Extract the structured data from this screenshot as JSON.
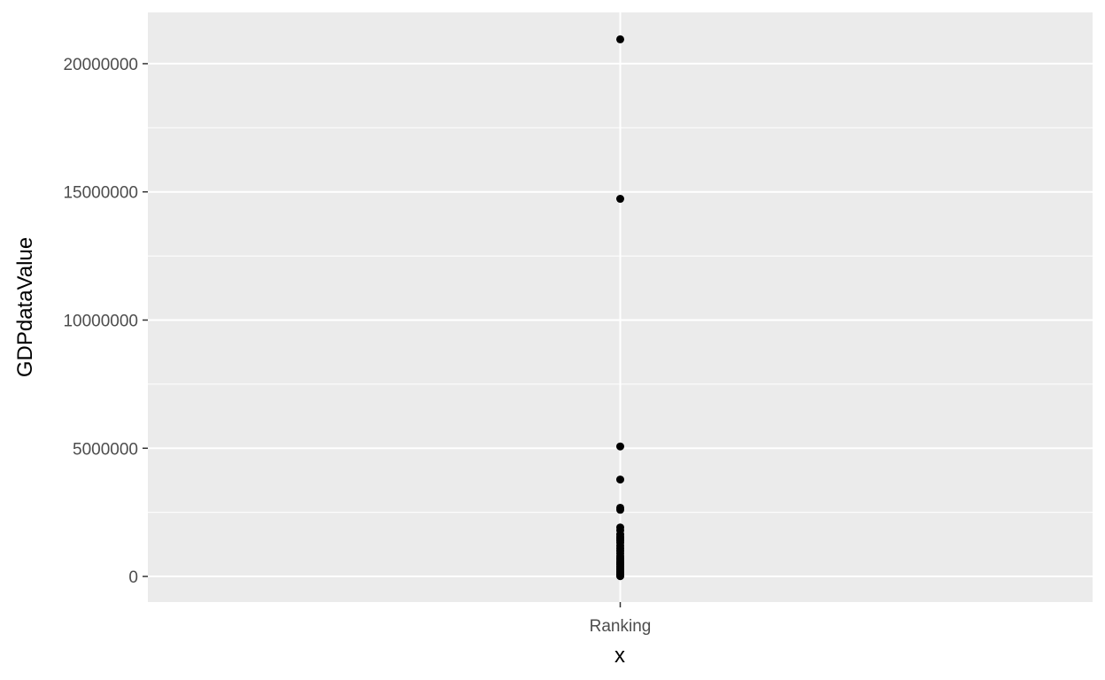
{
  "chart_data": {
    "type": "scatter",
    "title": "",
    "xlabel": "x",
    "ylabel": "GDPdataValue",
    "categories": [
      "Ranking"
    ],
    "ylim": [
      -1000000,
      22000000
    ],
    "y_ticks": [
      0,
      5000000,
      10000000,
      15000000,
      20000000
    ],
    "y_tick_labels": [
      "0",
      "5000000",
      "10000000",
      "15000000",
      "20000000"
    ],
    "grid": true,
    "legend": "none",
    "colors": {
      "panel": "#ebebeb",
      "grid": "#ffffff",
      "point": "#000000"
    },
    "points": [
      {
        "x": "Ranking",
        "y": 20950000
      },
      {
        "x": "Ranking",
        "y": 14730000
      },
      {
        "x": "Ranking",
        "y": 5070000
      },
      {
        "x": "Ranking",
        "y": 3780000
      },
      {
        "x": "Ranking",
        "y": 2680000
      },
      {
        "x": "Ranking",
        "y": 2600000
      },
      {
        "x": "Ranking",
        "y": 1910000
      },
      {
        "x": "Ranking",
        "y": 1800000
      },
      {
        "x": "Ranking",
        "y": 1640000
      },
      {
        "x": "Ranking",
        "y": 1550000
      },
      {
        "x": "Ranking",
        "y": 1480000
      },
      {
        "x": "Ranking",
        "y": 1400000
      },
      {
        "x": "Ranking",
        "y": 1320000
      },
      {
        "x": "Ranking",
        "y": 1200000
      },
      {
        "x": "Ranking",
        "y": 1100000
      },
      {
        "x": "Ranking",
        "y": 1000000
      },
      {
        "x": "Ranking",
        "y": 900000
      },
      {
        "x": "Ranking",
        "y": 800000
      },
      {
        "x": "Ranking",
        "y": 720000
      },
      {
        "x": "Ranking",
        "y": 650000
      },
      {
        "x": "Ranking",
        "y": 580000
      },
      {
        "x": "Ranking",
        "y": 520000
      },
      {
        "x": "Ranking",
        "y": 460000
      },
      {
        "x": "Ranking",
        "y": 400000
      },
      {
        "x": "Ranking",
        "y": 350000
      },
      {
        "x": "Ranking",
        "y": 300000
      },
      {
        "x": "Ranking",
        "y": 250000
      },
      {
        "x": "Ranking",
        "y": 200000
      },
      {
        "x": "Ranking",
        "y": 150000
      },
      {
        "x": "Ranking",
        "y": 100000
      },
      {
        "x": "Ranking",
        "y": 60000
      },
      {
        "x": "Ranking",
        "y": 30000
      },
      {
        "x": "Ranking",
        "y": 10000
      }
    ]
  }
}
